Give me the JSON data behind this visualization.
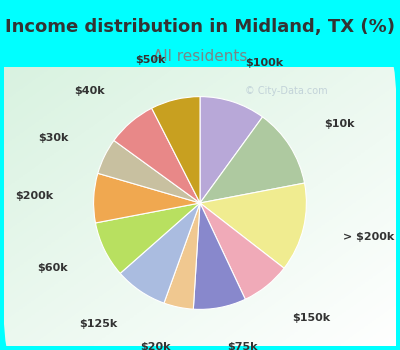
{
  "title": "Income distribution in Midland, TX (%)",
  "subtitle": "All residents",
  "watermark": "© City-Data.com",
  "background_cyan": "#00FFFF",
  "title_color": "#333333",
  "subtitle_color": "#778888",
  "labels": [
    "$100k",
    "$10k",
    "> $200k",
    "$150k",
    "$75k",
    "$20k",
    "$125k",
    "$60k",
    "$200k",
    "$30k",
    "$40k",
    "$50k"
  ],
  "values": [
    10.0,
    12.0,
    13.5,
    7.5,
    8.0,
    4.5,
    8.0,
    8.5,
    7.5,
    5.5,
    7.5,
    7.5
  ],
  "colors": [
    "#b8a8d8",
    "#aec9a0",
    "#f0ec90",
    "#f0aab8",
    "#8888cc",
    "#f0c890",
    "#aabce0",
    "#b8e060",
    "#f0a850",
    "#c8c0a0",
    "#e88888",
    "#c8a020"
  ],
  "title_fontsize": 13,
  "subtitle_fontsize": 11,
  "label_fontsize": 8,
  "figsize": [
    4.0,
    3.5
  ],
  "dpi": 100
}
